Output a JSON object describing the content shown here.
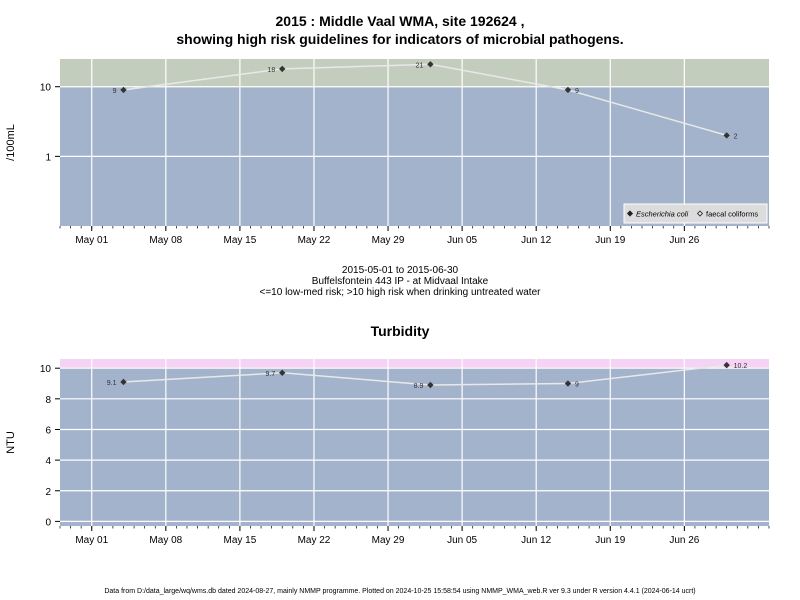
{
  "header": {
    "title_line1": "2015 : Middle Vaal WMA, site 192624 ,",
    "title_line2": "showing high risk guidelines for indicators of microbial pathogens."
  },
  "middle": {
    "date_range": "2015-05-01 to 2015-06-30",
    "site_name": "Buffelsfontein 443 IP - at Midvaal Intake",
    "risk_note": "<=10 low-med risk; >10 high risk when drinking untreated water"
  },
  "footer": {
    "text": "Data from D:/data_large/wq/wms.db dated 2024-08-27, mainly NMMP programme. Plotted on 2024-10-25 15:58:54 using NMMP_WMA_web.R ver 9.3 under R version 4.4.1 (2024-06-14 ucrt)"
  },
  "colors": {
    "panel_bg": "#a3b3cb",
    "high_risk_band_top": "#c3cdbd",
    "high_risk_band_bottom": "#f4d3f4",
    "grid": "#ffffff",
    "line": "#e8e8e8",
    "marker": "#333333"
  },
  "chart_data": [
    {
      "type": "line",
      "title": "",
      "xlabel": "",
      "ylabel": "/100mL",
      "y_scale": "log",
      "xlim": [
        "2015-04-28",
        "2015-07-04"
      ],
      "ylim": [
        0.1,
        25
      ],
      "x_ticks": [
        "May 01",
        "May 08",
        "May 15",
        "May 22",
        "May 29",
        "Jun 05",
        "Jun 12",
        "Jun 19",
        "Jun 26"
      ],
      "x_tick_dates": [
        "2015-05-01",
        "2015-05-08",
        "2015-05-15",
        "2015-05-22",
        "2015-05-29",
        "2015-06-05",
        "2015-06-12",
        "2015-06-19",
        "2015-06-26"
      ],
      "y_ticks": [
        1,
        10
      ],
      "y_tick_labels": [
        "1",
        "10"
      ],
      "high_risk_threshold": 10,
      "grid": true,
      "legend_position": "bottom-right",
      "legend": [
        {
          "label": "Escherichia coli",
          "marker": "filled-diamond",
          "italic": true
        },
        {
          "label": "faecal coliforms",
          "marker": "open-diamond",
          "italic": false
        }
      ],
      "series": [
        {
          "name": "Escherichia coli",
          "x": [
            "2015-05-04",
            "2015-05-19",
            "2015-06-02",
            "2015-06-15",
            "2015-06-30"
          ],
          "values": [
            9,
            18,
            21,
            9,
            2
          ],
          "labels": [
            "9",
            "18",
            "21",
            "9",
            "2"
          ]
        }
      ]
    },
    {
      "type": "line",
      "title": "Turbidity",
      "xlabel": "",
      "ylabel": "NTU",
      "xlim": [
        "2015-04-28",
        "2015-07-04"
      ],
      "ylim": [
        -0.3,
        10.6
      ],
      "x_ticks": [
        "May 01",
        "May 08",
        "May 15",
        "May 22",
        "May 29",
        "Jun 05",
        "Jun 12",
        "Jun 19",
        "Jun 26"
      ],
      "x_tick_dates": [
        "2015-05-01",
        "2015-05-08",
        "2015-05-15",
        "2015-05-22",
        "2015-05-29",
        "2015-06-05",
        "2015-06-12",
        "2015-06-19",
        "2015-06-26"
      ],
      "y_ticks": [
        0,
        2,
        4,
        6,
        8,
        10
      ],
      "y_tick_labels": [
        "0",
        "2",
        "4",
        "6",
        "8",
        "10"
      ],
      "high_risk_threshold": 10,
      "grid": true,
      "series": [
        {
          "name": "",
          "x": [
            "2015-05-04",
            "2015-05-19",
            "2015-06-02",
            "2015-06-15",
            "2015-06-30"
          ],
          "values": [
            9.1,
            9.7,
            8.9,
            9,
            10.2
          ],
          "labels": [
            "9.1",
            "9.7",
            "8.9",
            "9",
            "10.2"
          ]
        }
      ]
    }
  ]
}
